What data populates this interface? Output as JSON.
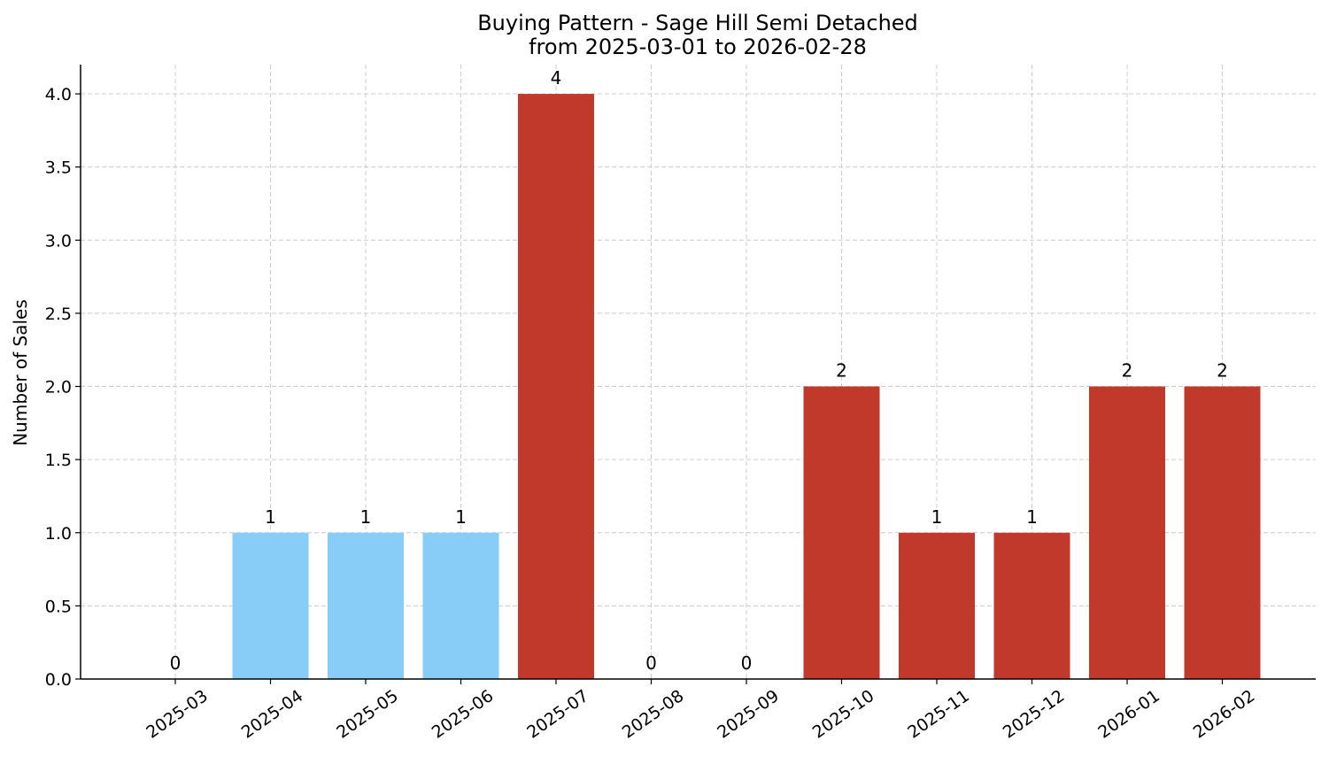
{
  "chart_data": {
    "type": "bar",
    "title_line1": "Buying Pattern - Sage Hill Semi Detached",
    "title_line2": "from 2025-03-01 to 2026-02-28",
    "ylabel": "Number of Sales",
    "xlabel": "",
    "categories": [
      "2025-03",
      "2025-04",
      "2025-05",
      "2025-06",
      "2025-07",
      "2025-08",
      "2025-09",
      "2025-10",
      "2025-11",
      "2025-12",
      "2026-01",
      "2026-02"
    ],
    "values": [
      0,
      1,
      1,
      1,
      4,
      0,
      0,
      2,
      1,
      1,
      2,
      2
    ],
    "bar_colors": [
      "#88ccf8",
      "#88ccf8",
      "#88ccf8",
      "#88ccf8",
      "#c0392b",
      "#c0392b",
      "#c0392b",
      "#c0392b",
      "#c0392b",
      "#c0392b",
      "#c0392b",
      "#c0392b"
    ],
    "ylim": [
      0,
      4.2
    ],
    "yticks": [
      "0.0",
      "0.5",
      "1.0",
      "1.5",
      "2.0",
      "2.5",
      "3.0",
      "3.5",
      "4.0"
    ],
    "grid": true,
    "legend": "none"
  }
}
